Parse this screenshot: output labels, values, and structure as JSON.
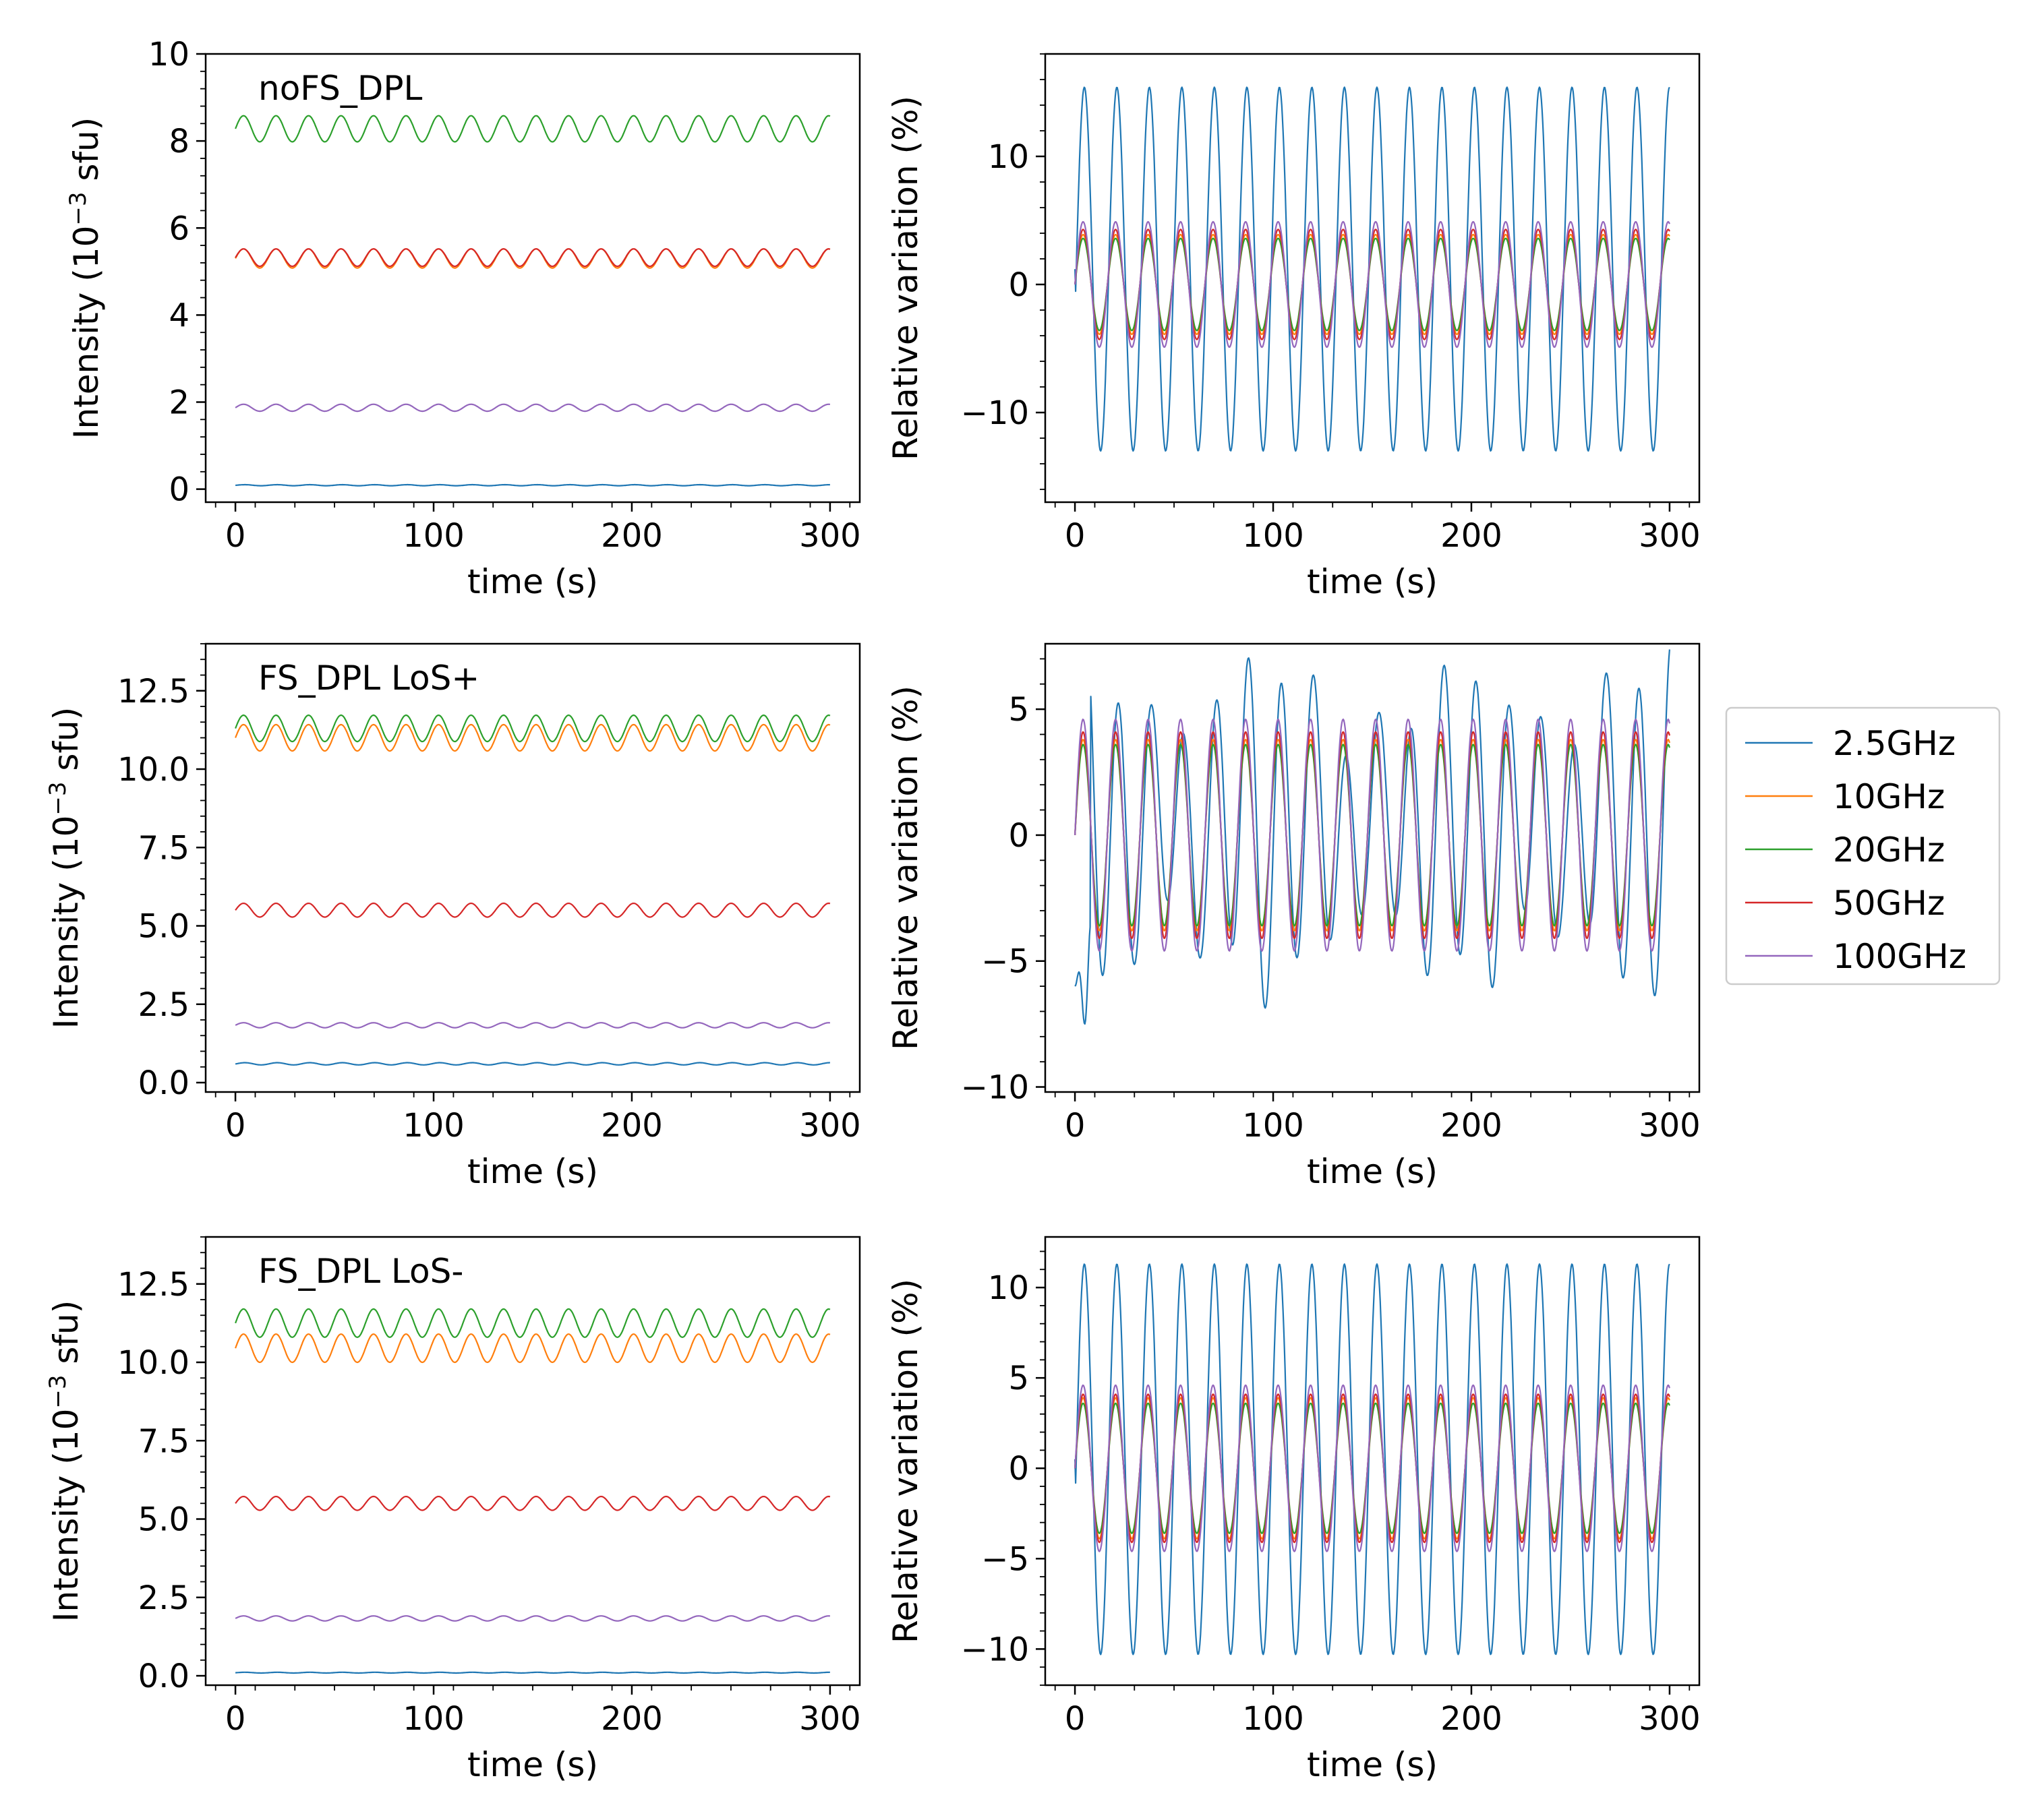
{
  "chart_data": {
    "type": "line",
    "colors": {
      "2.5GHz": "#1f77b4",
      "10GHz": "#ff7f0e",
      "20GHz": "#2ca02c",
      "50GHz": "#d62728",
      "100GHz": "#9467bd"
    },
    "legend": {
      "placement": "right of middle row",
      "entries": [
        "2.5GHz",
        "10GHz",
        "20GHz",
        "50GHz",
        "100GHz"
      ]
    },
    "grid": false,
    "panels": [
      {
        "id": "noFS_DPL-intensity",
        "label": "noFS_DPL",
        "xlabel": "time (s)",
        "ylabel_main": "Intensity (10",
        "ylabel_sup": "−3",
        "ylabel_tail": " sfu)",
        "xlim": [
          -15,
          315
        ],
        "ylim": [
          -0.3,
          10
        ],
        "xticks": [
          0,
          100,
          200,
          300
        ],
        "xtick_labels": [
          "0",
          "100",
          "200",
          "300"
        ],
        "yticks": [
          0,
          2,
          4,
          6,
          8,
          10
        ],
        "ytick_labels": [
          "0",
          "2",
          "4",
          "6",
          "8",
          "10"
        ],
        "series": [
          {
            "name": "2.5GHz",
            "baseline": 0.09,
            "amplitude": 0.012,
            "pattern": "sine"
          },
          {
            "name": "10GHz",
            "baseline": 5.3,
            "amplitude": 0.22,
            "pattern": "sine"
          },
          {
            "name": "20GHz",
            "baseline": 8.28,
            "amplitude": 0.3,
            "pattern": "sine"
          },
          {
            "name": "50GHz",
            "baseline": 5.32,
            "amplitude": 0.2,
            "pattern": "sine"
          },
          {
            "name": "100GHz",
            "baseline": 1.87,
            "amplitude": 0.08,
            "pattern": "sine"
          }
        ]
      },
      {
        "id": "noFS_DPL-relative",
        "xlabel": "time (s)",
        "ylabel": "Relative variation (%)",
        "xlim": [
          -15,
          315
        ],
        "ylim": [
          -17,
          18
        ],
        "xticks": [
          0,
          100,
          200,
          300
        ],
        "xtick_labels": [
          "0",
          "100",
          "200",
          "300"
        ],
        "yticks": [
          -10,
          0,
          10
        ],
        "ytick_labels": [
          "−10",
          "0",
          "10"
        ],
        "series": [
          {
            "name": "2.5GHz",
            "baseline": 1.2,
            "amplitude": 14.2,
            "pattern": "sine"
          },
          {
            "name": "10GHz",
            "baseline": 0,
            "amplitude": 3.9,
            "pattern": "sine"
          },
          {
            "name": "20GHz",
            "baseline": 0,
            "amplitude": 3.6,
            "pattern": "sine"
          },
          {
            "name": "50GHz",
            "baseline": 0,
            "amplitude": 4.3,
            "pattern": "sine"
          },
          {
            "name": "100GHz",
            "baseline": 0,
            "amplitude": 4.9,
            "pattern": "sine"
          }
        ]
      },
      {
        "id": "FS_DPL_LoS+-intensity",
        "label": "FS_DPL LoS+",
        "xlabel": "time (s)",
        "ylabel_main": "Intensity (10",
        "ylabel_sup": "−3",
        "ylabel_tail": " sfu)",
        "xlim": [
          -15,
          315
        ],
        "ylim": [
          -0.3,
          14
        ],
        "xticks": [
          0,
          100,
          200,
          300
        ],
        "xtick_labels": [
          "0",
          "100",
          "200",
          "300"
        ],
        "yticks": [
          0,
          2.5,
          5,
          7.5,
          10,
          12.5
        ],
        "ytick_labels": [
          "0.0",
          "2.5",
          "5.0",
          "7.5",
          "10.0",
          "12.5"
        ],
        "series": [
          {
            "name": "2.5GHz",
            "baseline": 0.6,
            "amplitude": 0.035,
            "pattern": "sine"
          },
          {
            "name": "10GHz",
            "baseline": 11.0,
            "amplitude": 0.42,
            "pattern": "sine"
          },
          {
            "name": "20GHz",
            "baseline": 11.3,
            "amplitude": 0.42,
            "pattern": "sine"
          },
          {
            "name": "50GHz",
            "baseline": 5.5,
            "amplitude": 0.22,
            "pattern": "sine"
          },
          {
            "name": "100GHz",
            "baseline": 1.83,
            "amplitude": 0.08,
            "pattern": "sine"
          }
        ]
      },
      {
        "id": "FS_DPL_LoS+-relative",
        "xlabel": "time (s)",
        "ylabel": "Relative variation (%)",
        "xlim": [
          -15,
          315
        ],
        "ylim": [
          -10.2,
          7.6
        ],
        "xticks": [
          0,
          100,
          200,
          300
        ],
        "xtick_labels": [
          "0",
          "100",
          "200",
          "300"
        ],
        "yticks": [
          -10,
          -5,
          0,
          5
        ],
        "ytick_labels": [
          "−10",
          "−5",
          "0",
          "5"
        ],
        "series": [
          {
            "name": "2.5GHz",
            "baseline": 0.4,
            "amplitude": 5.0,
            "pattern": "irregular"
          },
          {
            "name": "10GHz",
            "baseline": 0,
            "amplitude": 3.8,
            "pattern": "sine"
          },
          {
            "name": "20GHz",
            "baseline": 0,
            "amplitude": 3.6,
            "pattern": "sine"
          },
          {
            "name": "50GHz",
            "baseline": 0,
            "amplitude": 4.1,
            "pattern": "sine"
          },
          {
            "name": "100GHz",
            "baseline": 0,
            "amplitude": 4.6,
            "pattern": "sine"
          }
        ]
      },
      {
        "id": "FS_DPL_LoS--intensity",
        "label": "FS_DPL LoS-",
        "xlabel": "time (s)",
        "ylabel_main": "Intensity (10",
        "ylabel_sup": "−3",
        "ylabel_tail": " sfu)",
        "xlim": [
          -15,
          315
        ],
        "ylim": [
          -0.3,
          14
        ],
        "xticks": [
          0,
          100,
          200,
          300
        ],
        "xtick_labels": [
          "0",
          "100",
          "200",
          "300"
        ],
        "yticks": [
          0,
          2.5,
          5,
          7.5,
          10,
          12.5
        ],
        "ytick_labels": [
          "0.0",
          "2.5",
          "5.0",
          "7.5",
          "10.0",
          "12.5"
        ],
        "series": [
          {
            "name": "2.5GHz",
            "baseline": 0.1,
            "amplitude": 0.012,
            "pattern": "sine"
          },
          {
            "name": "10GHz",
            "baseline": 10.45,
            "amplitude": 0.45,
            "pattern": "sine"
          },
          {
            "name": "20GHz",
            "baseline": 11.25,
            "amplitude": 0.45,
            "pattern": "sine"
          },
          {
            "name": "50GHz",
            "baseline": 5.5,
            "amplitude": 0.22,
            "pattern": "sine"
          },
          {
            "name": "100GHz",
            "baseline": 1.83,
            "amplitude": 0.08,
            "pattern": "sine"
          }
        ]
      },
      {
        "id": "FS_DPL_LoS--relative",
        "xlabel": "time (s)",
        "ylabel": "Relative variation (%)",
        "xlim": [
          -15,
          315
        ],
        "ylim": [
          -12,
          12.8
        ],
        "xticks": [
          0,
          100,
          200,
          300
        ],
        "xtick_labels": [
          "0",
          "100",
          "200",
          "300"
        ],
        "yticks": [
          -10,
          -5,
          0,
          5,
          10
        ],
        "ytick_labels": [
          "−10",
          "−5",
          "0",
          "5",
          "10"
        ],
        "series": [
          {
            "name": "2.5GHz",
            "baseline": 0.5,
            "amplitude": 10.8,
            "pattern": "sine"
          },
          {
            "name": "10GHz",
            "baseline": 0,
            "amplitude": 3.9,
            "pattern": "sine"
          },
          {
            "name": "20GHz",
            "baseline": 0,
            "amplitude": 3.6,
            "pattern": "sine"
          },
          {
            "name": "50GHz",
            "baseline": 0,
            "amplitude": 4.1,
            "pattern": "sine"
          },
          {
            "name": "100GHz",
            "baseline": 0,
            "amplitude": 4.6,
            "pattern": "sine"
          }
        ]
      }
    ],
    "time": {
      "start": 0,
      "end": 300,
      "period": 16.4
    }
  }
}
